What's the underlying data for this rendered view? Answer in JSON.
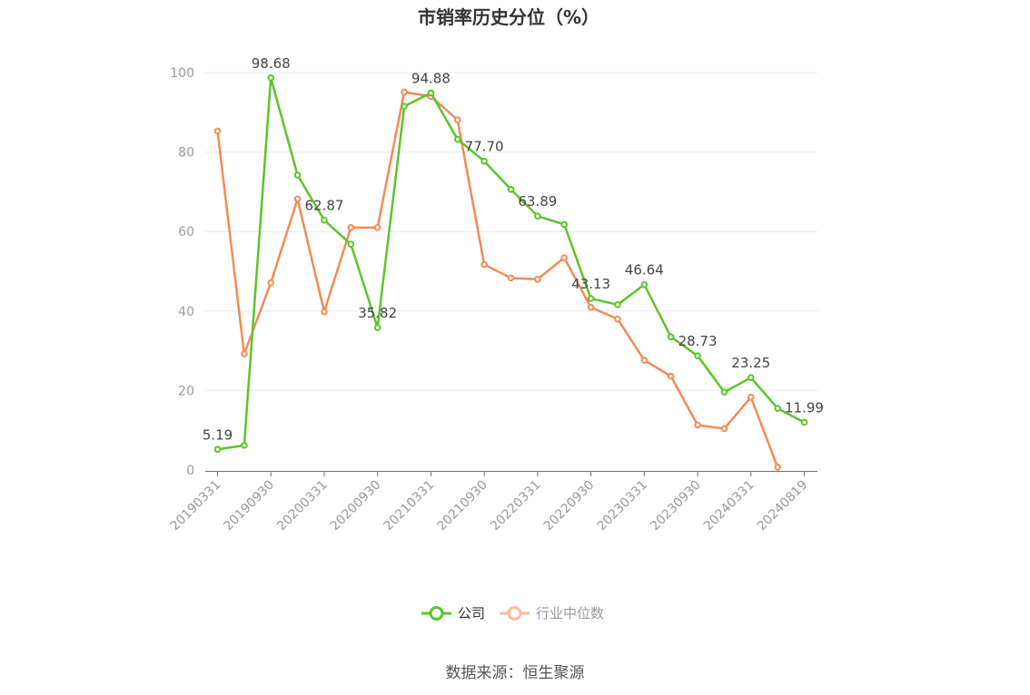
{
  "chart_data": {
    "type": "line",
    "title": "市销率历史分位（%）",
    "ylim": [
      0,
      100
    ],
    "yticks": [
      0,
      20,
      40,
      60,
      80,
      100
    ],
    "grid": true,
    "legend_position": "bottom-center",
    "x": [
      "20190331",
      "20190630",
      "20190930",
      "20191231",
      "20200331",
      "20200630",
      "20200930",
      "20201231",
      "20210331",
      "20210630",
      "20210930",
      "20211231",
      "20220331",
      "20220630",
      "20220930",
      "20221231",
      "20230331",
      "20230630",
      "20230930",
      "20231231",
      "20240331",
      "20240630",
      "20240819"
    ],
    "x_tick_labels": [
      "20190331",
      "20190930",
      "20200331",
      "20200930",
      "20210331",
      "20210930",
      "20220331",
      "20220930",
      "20230331",
      "20230930",
      "20240331",
      "20240819"
    ],
    "series": [
      {
        "name": "公司",
        "color": "#5cc42b",
        "values": [
          5.19,
          6.2,
          98.68,
          74.2,
          62.87,
          56.8,
          35.82,
          91.5,
          94.88,
          83.2,
          77.7,
          70.6,
          63.89,
          61.8,
          43.13,
          41.6,
          46.64,
          33.5,
          28.73,
          19.6,
          23.25,
          15.5,
          11.99
        ],
        "labeled_points": [
          {
            "index": 0,
            "text": "5.19"
          },
          {
            "index": 2,
            "text": "98.68"
          },
          {
            "index": 4,
            "text": "62.87"
          },
          {
            "index": 6,
            "text": "35.82"
          },
          {
            "index": 8,
            "text": "94.88"
          },
          {
            "index": 10,
            "text": "77.70"
          },
          {
            "index": 12,
            "text": "63.89"
          },
          {
            "index": 14,
            "text": "43.13"
          },
          {
            "index": 16,
            "text": "46.64"
          },
          {
            "index": 18,
            "text": "28.73"
          },
          {
            "index": 20,
            "text": "23.25"
          },
          {
            "index": 22,
            "text": "11.99"
          }
        ]
      },
      {
        "name": "行业中位数",
        "color": "#f28b55",
        "values": [
          85.3,
          29.2,
          47.1,
          68.2,
          39.8,
          61.0,
          61.0,
          95.1,
          94.0,
          88.1,
          51.7,
          48.3,
          48.0,
          53.4,
          40.9,
          38.0,
          27.6,
          23.6,
          11.3,
          10.4,
          18.3,
          0.7,
          null
        ]
      }
    ]
  },
  "legend": {
    "items": [
      {
        "label": "公司",
        "color": "#5cc42b",
        "text_color": "#333333"
      },
      {
        "label": "行业中位数",
        "color": "#f9bca0",
        "text_color": "#999999"
      }
    ]
  },
  "source_text": "数据来源：恒生聚源"
}
